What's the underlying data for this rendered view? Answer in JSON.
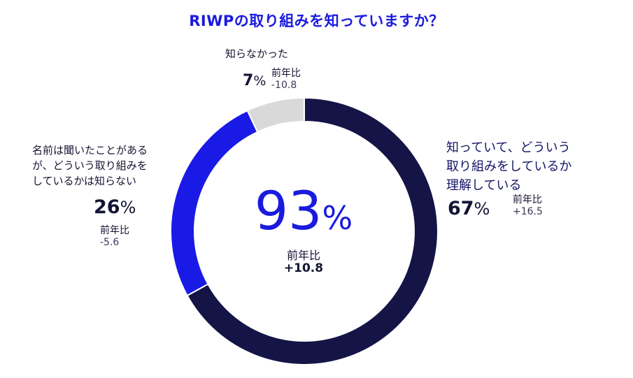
{
  "title": "RIWPの取り組みを知っていますか？",
  "colors": {
    "known": "#151446",
    "heard": "#1a1ae6",
    "unknown": "#d9d9d9",
    "title": "#1a1adf"
  },
  "center": {
    "value": "93",
    "unit": "%",
    "yoy_label": "前年比",
    "yoy_value": "+10.8"
  },
  "segments": {
    "known": {
      "label_lines": [
        "知っていて、どういう",
        "取り組みをしているか",
        "理解している"
      ],
      "percent": "67",
      "unit": "%",
      "yoy_label": "前年比",
      "yoy_value": "+16.5"
    },
    "heard": {
      "label_lines": [
        "名前は聞いたことがある",
        "が、どういう取り組みを",
        "しているかは知らない"
      ],
      "percent": "26",
      "unit": "%",
      "yoy_label": "前年比",
      "yoy_value": "-5.6"
    },
    "unknown": {
      "label": "知らなかった",
      "percent": "7",
      "unit": "%",
      "yoy_label": "前年比",
      "yoy_value": "-10.8"
    }
  },
  "chart_data": {
    "type": "pie",
    "style": "donut",
    "title": "RIWPの取り組みを知っていますか？",
    "categories": [
      "知っていて、どういう取り組みをしているか理解している",
      "名前は聞いたことがあるが、どういう取り組みをしているかは知らない",
      "知らなかった"
    ],
    "values": [
      67,
      26,
      7
    ],
    "yoy_change": [
      16.5,
      -5.6,
      -10.8
    ],
    "center_total": 93,
    "center_yoy": 10.8
  }
}
